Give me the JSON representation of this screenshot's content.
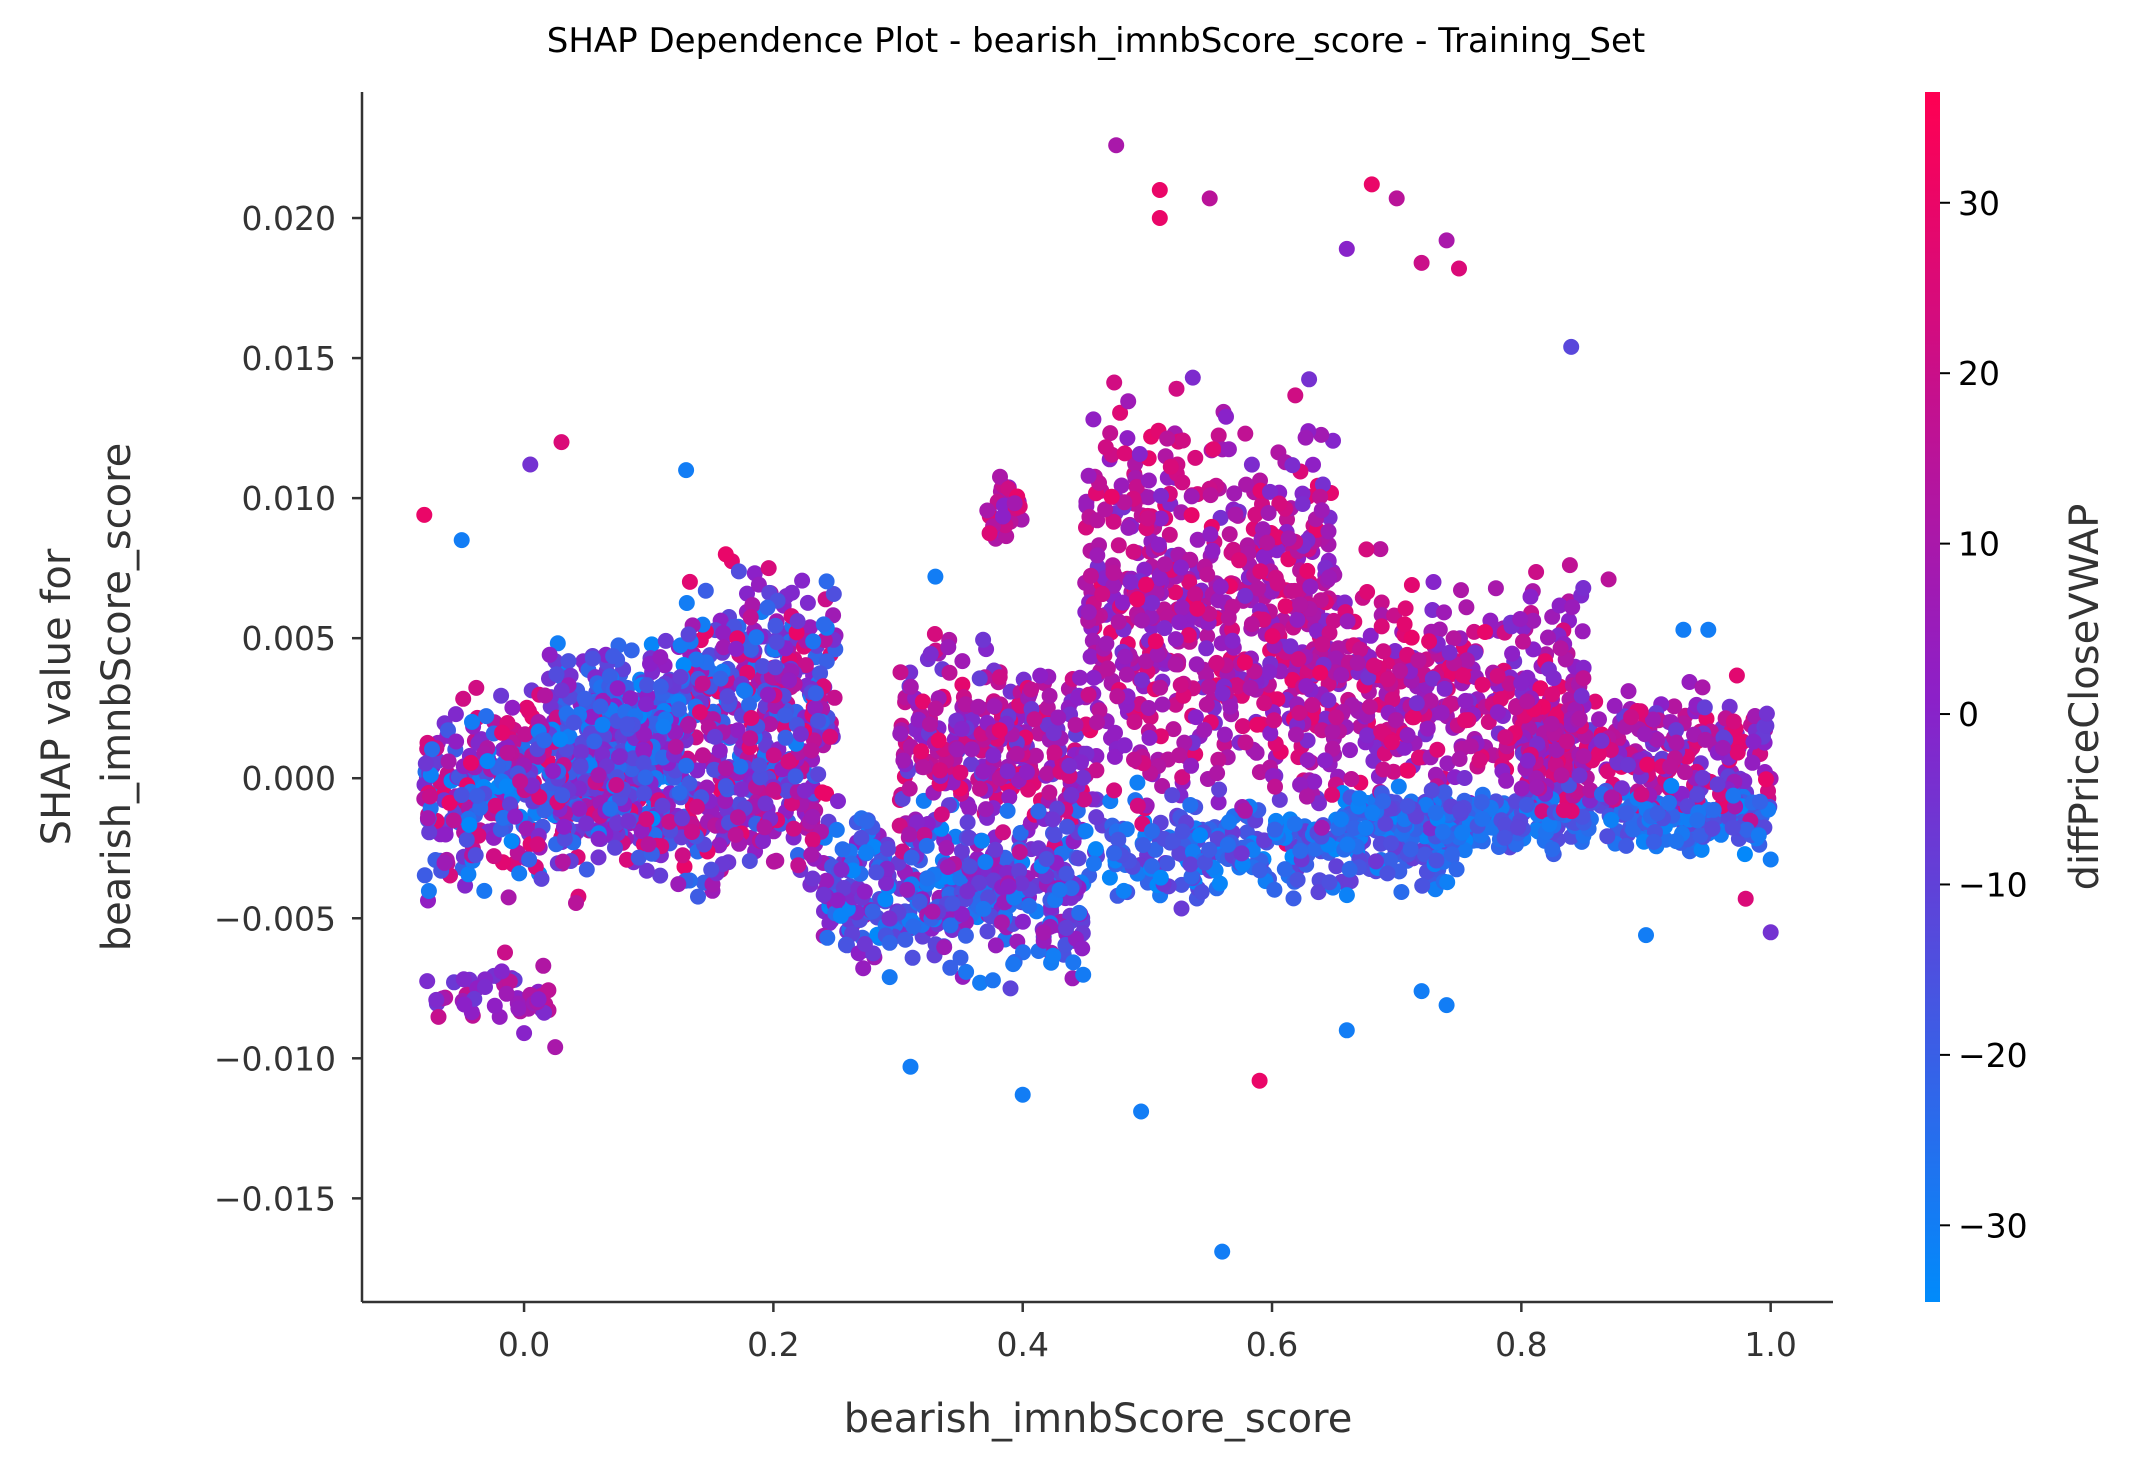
{
  "chart_data": {
    "type": "scatter",
    "title": "SHAP Dependence Plot - bearish_imnbScore_score - Training_Set",
    "xlabel": "bearish_imnbScore_score",
    "ylabel_line1": "SHAP value for",
    "ylabel_line2": "bearish_imnbScore_score",
    "xlim": [
      -0.13,
      1.05
    ],
    "ylim": [
      -0.0187,
      0.0245
    ],
    "x_ticks": [
      0.0,
      0.2,
      0.4,
      0.6,
      0.8,
      1.0
    ],
    "x_tick_labels": [
      "0.0",
      "0.2",
      "0.4",
      "0.6",
      "0.8",
      "1.0"
    ],
    "y_ticks": [
      -0.015,
      -0.01,
      -0.005,
      0.0,
      0.005,
      0.01,
      0.015,
      0.02
    ],
    "y_tick_labels": [
      "−0.015",
      "−0.010",
      "−0.005",
      "0.000",
      "0.005",
      "0.010",
      "0.015",
      "0.020"
    ],
    "grid": false,
    "colorbar": {
      "label": "diffPriceCloseVWAP",
      "range": [
        -34.5,
        36.5
      ],
      "ticks": [
        -30,
        -20,
        -10,
        0,
        10,
        20,
        30
      ],
      "tick_labels": [
        "−30",
        "−20",
        "−10",
        "0",
        "10",
        "20",
        "30"
      ],
      "color_low": "#008bfb",
      "color_mid": "#8c20c8",
      "color_high": "#ff0052"
    },
    "clusters": [
      {
        "x": [
          -0.08,
          0.02
        ],
        "y": [
          -0.005,
          0.004
        ],
        "c": [
          -34,
          30
        ],
        "n": 260
      },
      {
        "x": [
          0.02,
          0.13
        ],
        "y": [
          -0.003,
          0.006
        ],
        "c": [
          -34,
          5
        ],
        "n": 420
      },
      {
        "x": [
          0.13,
          0.25
        ],
        "y": [
          -0.002,
          0.0085
        ],
        "c": [
          -30,
          30
        ],
        "n": 320
      },
      {
        "x": [
          0.02,
          0.24
        ],
        "y": [
          -0.005,
          0.003
        ],
        "c": [
          -25,
          30
        ],
        "n": 380
      },
      {
        "x": [
          0.24,
          0.45
        ],
        "y": [
          -0.008,
          0.0
        ],
        "c": [
          -34,
          10
        ],
        "n": 420
      },
      {
        "x": [
          0.3,
          0.45
        ],
        "y": [
          -0.004,
          0.006
        ],
        "c": [
          -10,
          30
        ],
        "n": 300
      },
      {
        "x": [
          0.45,
          0.65
        ],
        "y": [
          -0.004,
          0.016
        ],
        "c": [
          -5,
          30
        ],
        "n": 650
      },
      {
        "x": [
          0.45,
          0.75
        ],
        "y": [
          -0.005,
          0.0
        ],
        "c": [
          -34,
          -5
        ],
        "n": 320
      },
      {
        "x": [
          0.62,
          0.85
        ],
        "y": [
          -0.003,
          0.009
        ],
        "c": [
          -5,
          30
        ],
        "n": 420
      },
      {
        "x": [
          0.65,
          1.0
        ],
        "y": [
          -0.003,
          0.0
        ],
        "c": [
          -34,
          -10
        ],
        "n": 350
      },
      {
        "x": [
          0.8,
          1.0
        ],
        "y": [
          -0.002,
          0.004
        ],
        "c": [
          -10,
          30
        ],
        "n": 300
      },
      {
        "x": [
          -0.08,
          0.02
        ],
        "y": [
          -0.0092,
          -0.006
        ],
        "c": [
          -10,
          20
        ],
        "n": 50
      },
      {
        "x": [
          0.37,
          0.4
        ],
        "y": [
          0.0075,
          0.0115
        ],
        "c": [
          0,
          30
        ],
        "n": 30
      }
    ],
    "outliers": [
      {
        "x": 0.475,
        "y": 0.0226,
        "c": 10
      },
      {
        "x": 0.68,
        "y": 0.0212,
        "c": 30
      },
      {
        "x": 0.51,
        "y": 0.021,
        "c": 30
      },
      {
        "x": 0.7,
        "y": 0.0207,
        "c": 15
      },
      {
        "x": 0.55,
        "y": 0.0207,
        "c": 15
      },
      {
        "x": 0.51,
        "y": 0.02,
        "c": 30
      },
      {
        "x": 0.74,
        "y": 0.0192,
        "c": 10
      },
      {
        "x": 0.72,
        "y": 0.0184,
        "c": 20
      },
      {
        "x": 0.75,
        "y": 0.0182,
        "c": 25
      },
      {
        "x": 0.66,
        "y": 0.0189,
        "c": 0
      },
      {
        "x": 0.84,
        "y": 0.0154,
        "c": -12
      },
      {
        "x": 0.56,
        "y": -0.0169,
        "c": -30
      },
      {
        "x": 0.495,
        "y": -0.0119,
        "c": -30
      },
      {
        "x": 0.4,
        "y": -0.0113,
        "c": -30
      },
      {
        "x": 0.59,
        "y": -0.0108,
        "c": 30
      },
      {
        "x": 0.31,
        "y": -0.0103,
        "c": -30
      },
      {
        "x": 0.66,
        "y": -0.009,
        "c": -30
      },
      {
        "x": 0.72,
        "y": -0.0076,
        "c": -30
      },
      {
        "x": 0.74,
        "y": -0.0081,
        "c": -30
      },
      {
        "x": -0.08,
        "y": 0.0094,
        "c": 30
      },
      {
        "x": -0.05,
        "y": 0.0085,
        "c": -30
      },
      {
        "x": 0.005,
        "y": 0.0112,
        "c": -5
      },
      {
        "x": 0.03,
        "y": 0.012,
        "c": 25
      },
      {
        "x": 0.13,
        "y": 0.011,
        "c": -30
      },
      {
        "x": 0.33,
        "y": 0.0072,
        "c": -30
      },
      {
        "x": 0.93,
        "y": 0.0053,
        "c": -30
      },
      {
        "x": 0.95,
        "y": 0.0053,
        "c": -30
      },
      {
        "x": 1.0,
        "y": -0.0055,
        "c": -5
      },
      {
        "x": 1.0,
        "y": -0.0029,
        "c": -30
      },
      {
        "x": 0.98,
        "y": -0.0043,
        "c": 25
      },
      {
        "x": 0.9,
        "y": -0.0056,
        "c": -30
      },
      {
        "x": 0.87,
        "y": 0.0071,
        "c": 15
      },
      {
        "x": 0.0,
        "y": -0.0091,
        "c": 0
      },
      {
        "x": 0.025,
        "y": -0.0096,
        "c": 10
      }
    ]
  }
}
